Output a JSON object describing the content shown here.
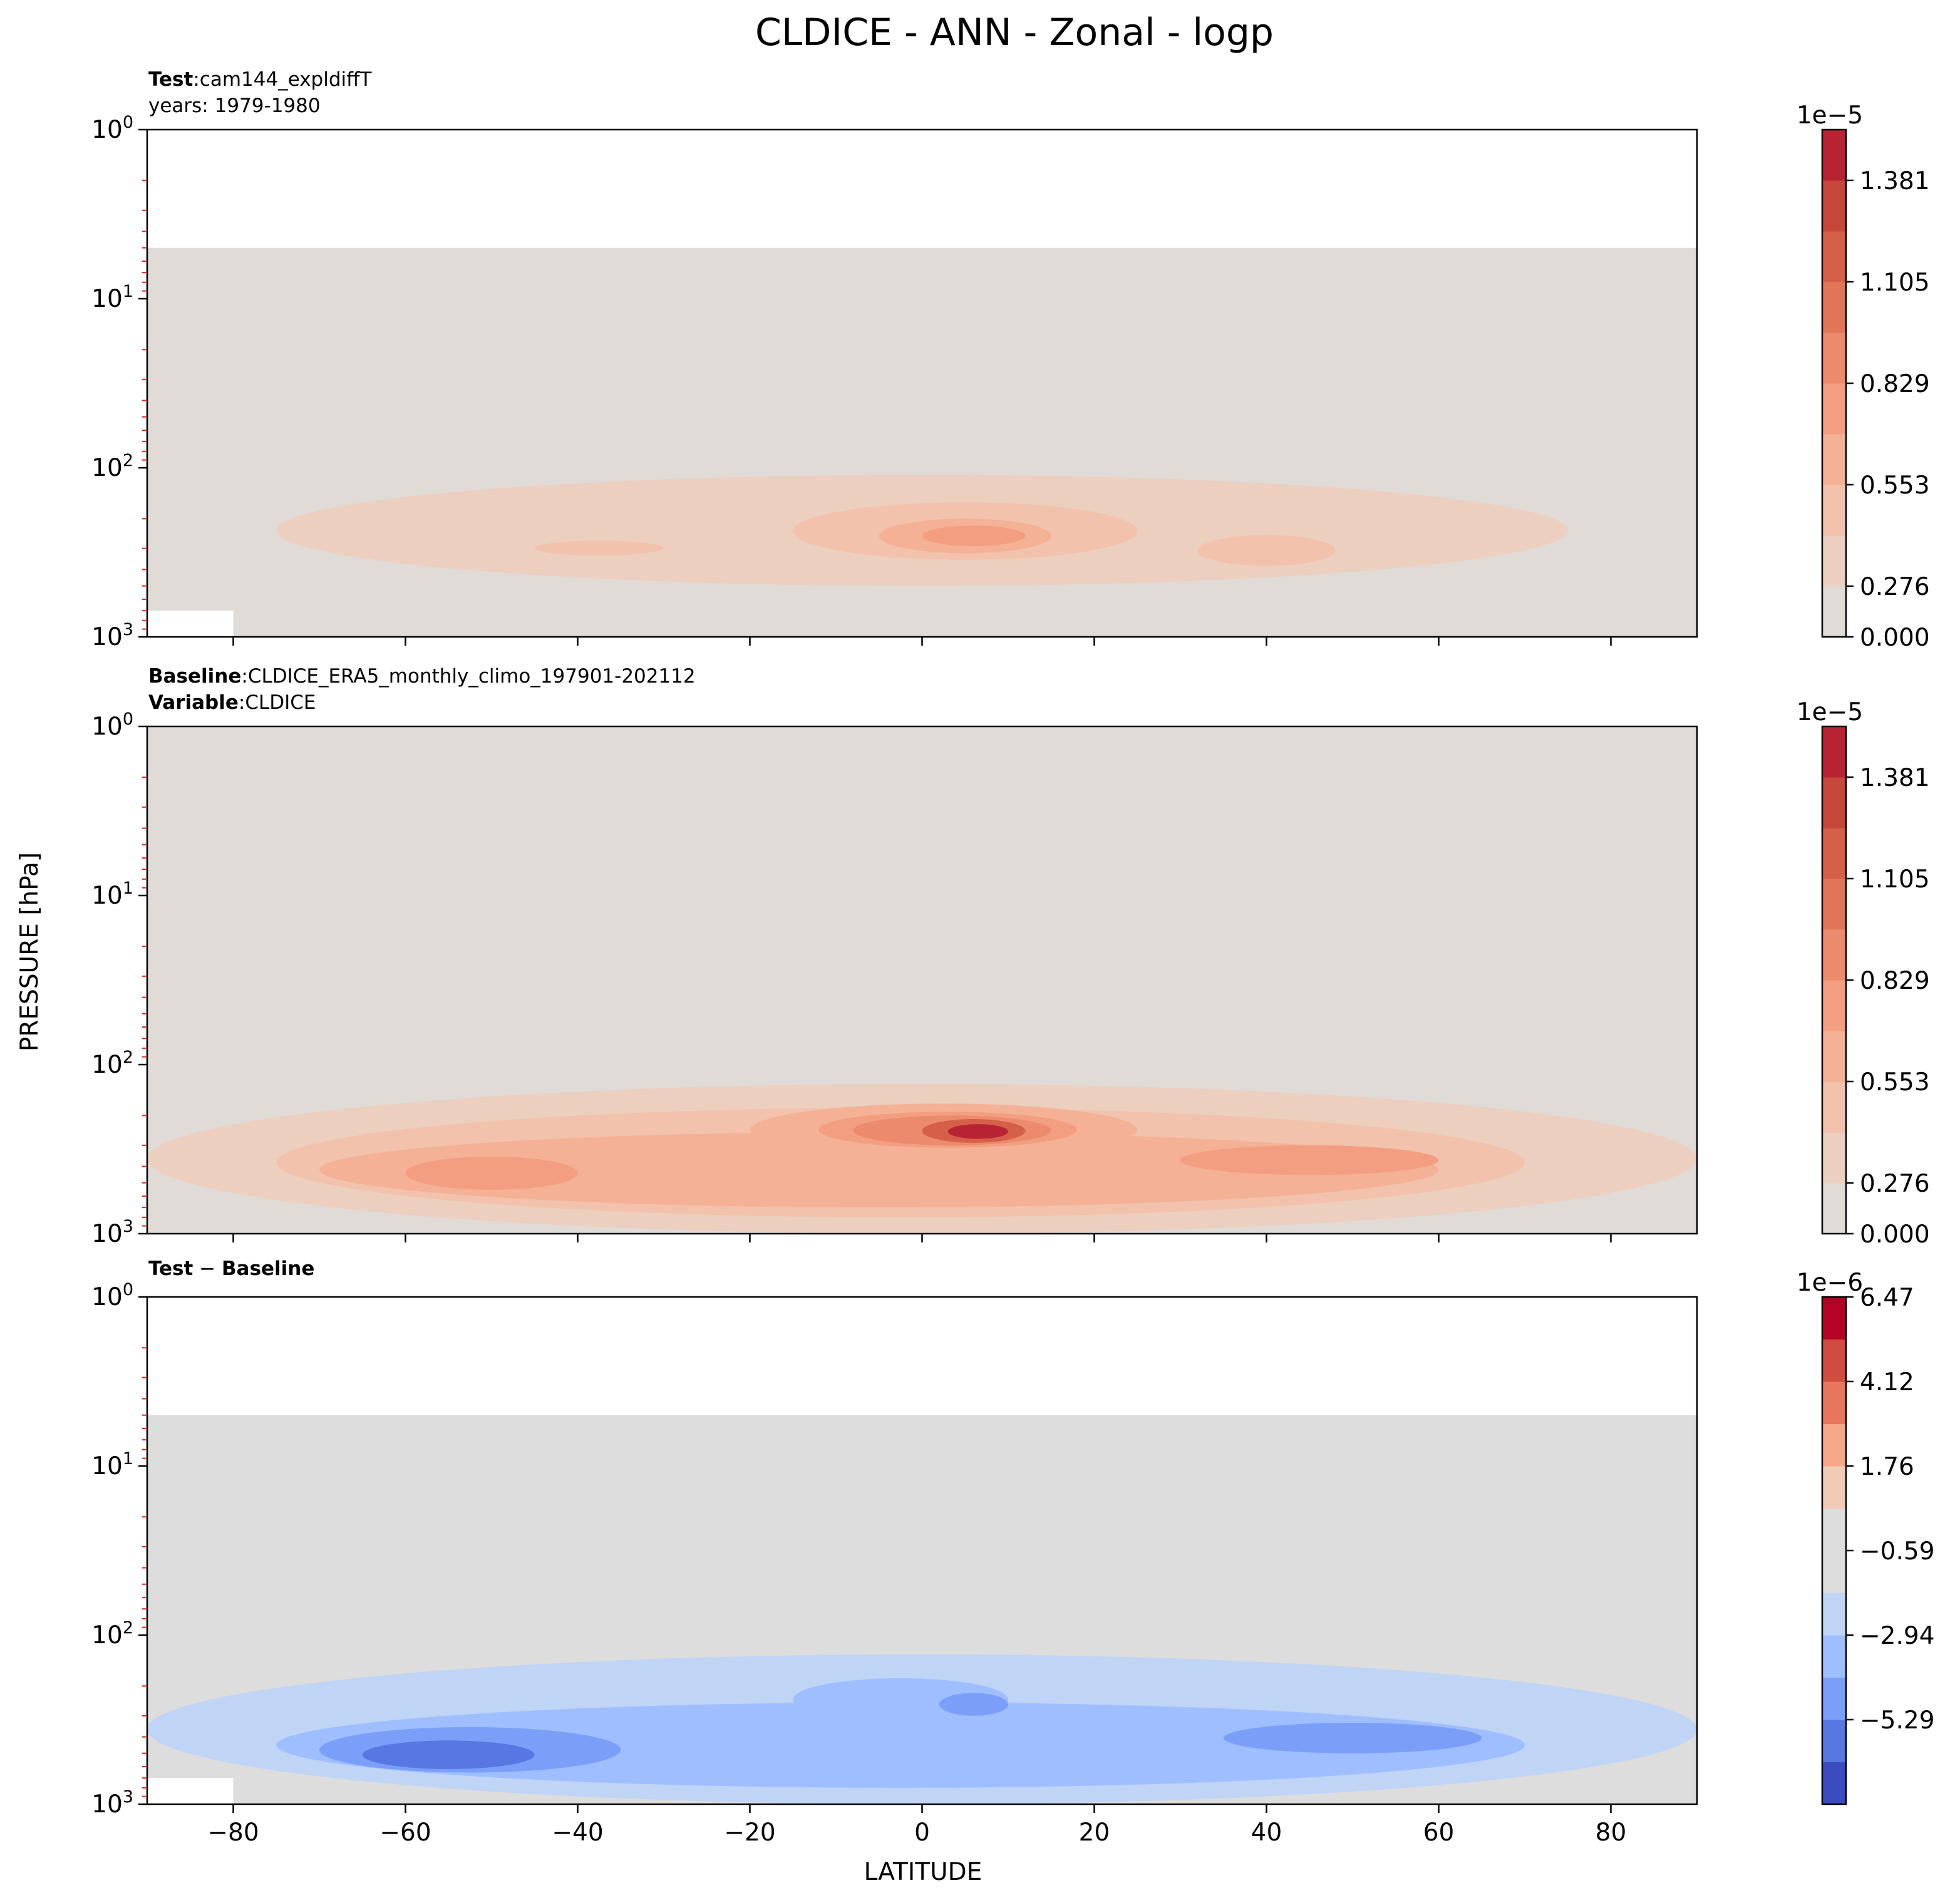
{
  "figure": {
    "title": "CLDICE - ANN - Zonal - logp",
    "xlabel": "LATITUDE",
    "ylabel": "PRESSURE [hPa]"
  },
  "chart_data": [
    {
      "type": "heatmap",
      "subtype": "filled-contour",
      "panel": "test",
      "title_lines": [
        {
          "bold": "Test",
          "sep": ":",
          "text": "cam144_expldiffT"
        },
        {
          "bold": "",
          "sep": "",
          "text": "years: 1979-1980"
        }
      ],
      "xlim": [
        -90,
        90
      ],
      "ylim": [
        1000,
        1
      ],
      "yscale": "log",
      "y_ticks": [
        "10",
        "10",
        "10",
        "10"
      ],
      "y_tick_exponents": [
        "0",
        "1",
        "2",
        "3"
      ],
      "x_ticks": [
        "−80",
        "−60",
        "−40",
        "−20",
        "0",
        "20",
        "40",
        "60",
        "80"
      ],
      "show_x_ticklabels": false,
      "data_top_hPa": 5,
      "colorbar": {
        "multiplier": "1e−5",
        "ticks": [
          "1.381",
          "1.105",
          "0.829",
          "0.553",
          "0.276",
          "0.000"
        ],
        "colors": [
          "#e0dbd6",
          "#edcfc0",
          "#f2c2ad",
          "#f4b196",
          "#f39e80",
          "#ec8a6d",
          "#e17558",
          "#d55f48",
          "#c8473b",
          "#b82334"
        ]
      },
      "fields": [
        {
          "lat": [
            -75,
            75
          ],
          "p_hPa": [
            110,
            500
          ],
          "level": 1
        },
        {
          "lat": [
            -30,
            50
          ],
          "p_hPa": [
            150,
            320
          ],
          "level": 1
        },
        {
          "lat": [
            -15,
            25
          ],
          "p_hPa": [
            160,
            350
          ],
          "level": 2
        },
        {
          "lat": [
            -5,
            15
          ],
          "p_hPa": [
            200,
            320
          ],
          "level": 3
        },
        {
          "lat": [
            0,
            12
          ],
          "p_hPa": [
            220,
            290
          ],
          "level": 4
        },
        {
          "lat": [
            32,
            48
          ],
          "p_hPa": [
            250,
            380
          ],
          "level": 2
        },
        {
          "lat": [
            -45,
            -30
          ],
          "p_hPa": [
            270,
            330
          ],
          "level": 2
        }
      ]
    },
    {
      "type": "heatmap",
      "subtype": "filled-contour",
      "panel": "baseline",
      "title_lines": [
        {
          "bold": "Baseline",
          "sep": ":",
          "text": "CLDICE_ERA5_monthly_climo_197901-202112"
        },
        {
          "bold": "Variable",
          "sep": ":",
          "text": "CLDICE"
        }
      ],
      "xlim": [
        -90,
        90
      ],
      "ylim": [
        1000,
        1
      ],
      "yscale": "log",
      "y_ticks": [
        "10",
        "10",
        "10",
        "10"
      ],
      "y_tick_exponents": [
        "0",
        "1",
        "2",
        "3"
      ],
      "x_ticks": [
        "−80",
        "−60",
        "−40",
        "−20",
        "0",
        "20",
        "40",
        "60",
        "80"
      ],
      "show_x_ticklabels": false,
      "data_top_hPa": 1,
      "colorbar": {
        "multiplier": "1e−5",
        "ticks": [
          "1.381",
          "1.105",
          "0.829",
          "0.553",
          "0.276",
          "0.000"
        ],
        "colors": [
          "#e0dbd6",
          "#edcfc0",
          "#f2c2ad",
          "#f4b196",
          "#f39e80",
          "#ec8a6d",
          "#e17558",
          "#d55f48",
          "#c8473b",
          "#b82334"
        ]
      },
      "fields": [
        {
          "lat": [
            -90,
            90
          ],
          "p_hPa": [
            130,
            1000
          ],
          "level": 1
        },
        {
          "lat": [
            -75,
            70
          ],
          "p_hPa": [
            180,
            800
          ],
          "level": 2
        },
        {
          "lat": [
            -70,
            60
          ],
          "p_hPa": [
            250,
            700
          ],
          "level": 3
        },
        {
          "lat": [
            -20,
            25
          ],
          "p_hPa": [
            170,
            350
          ],
          "level": 3
        },
        {
          "lat": [
            -12,
            18
          ],
          "p_hPa": [
            190,
            310
          ],
          "level": 4
        },
        {
          "lat": [
            -8,
            15
          ],
          "p_hPa": [
            200,
            300
          ],
          "level": 5
        },
        {
          "lat": [
            0,
            12
          ],
          "p_hPa": [
            210,
            290
          ],
          "level": 7
        },
        {
          "lat": [
            3,
            10
          ],
          "p_hPa": [
            225,
            275
          ],
          "level": 9
        },
        {
          "lat": [
            30,
            60
          ],
          "p_hPa": [
            300,
            450
          ],
          "level": 4
        },
        {
          "lat": [
            -60,
            -40
          ],
          "p_hPa": [
            350,
            550
          ],
          "level": 4
        }
      ]
    },
    {
      "type": "heatmap",
      "subtype": "filled-contour",
      "panel": "difference",
      "title_lines": [
        {
          "bold": "Test",
          "sep": " − ",
          "text": "",
          "bold2": "Baseline"
        }
      ],
      "xlim": [
        -90,
        90
      ],
      "ylim": [
        1000,
        1
      ],
      "yscale": "log",
      "y_ticks": [
        "10",
        "10",
        "10",
        "10"
      ],
      "y_tick_exponents": [
        "0",
        "1",
        "2",
        "3"
      ],
      "x_ticks": [
        "−80",
        "−60",
        "−40",
        "−20",
        "0",
        "20",
        "40",
        "60",
        "80"
      ],
      "show_x_ticklabels": true,
      "data_top_hPa": 5,
      "colorbar": {
        "multiplier": "1e−6",
        "ticks": [
          "6.47",
          "4.12",
          "1.76",
          "−0.59",
          "−2.94",
          "−5.29"
        ],
        "colors": [
          "#3b4cc0",
          "#5977e3",
          "#7b9ff9",
          "#9ebeff",
          "#c0d4f5",
          "#dddddd",
          "#dddddd",
          "#f2cbb7",
          "#f7a889",
          "#e8765c",
          "#d24b40",
          "#b40426"
        ]
      },
      "fields": [
        {
          "lat": [
            -90,
            90
          ],
          "p_hPa": [
            130,
            1000
          ],
          "level": -1
        },
        {
          "lat": [
            -75,
            70
          ],
          "p_hPa": [
            250,
            800
          ],
          "level": -2
        },
        {
          "lat": [
            -70,
            -35
          ],
          "p_hPa": [
            350,
            650
          ],
          "level": -3
        },
        {
          "lat": [
            -65,
            -45
          ],
          "p_hPa": [
            420,
            620
          ],
          "level": -4
        },
        {
          "lat": [
            -15,
            10
          ],
          "p_hPa": [
            180,
            320
          ],
          "level": -2
        },
        {
          "lat": [
            2,
            10
          ],
          "p_hPa": [
            220,
            300
          ],
          "level": -3
        },
        {
          "lat": [
            35,
            65
          ],
          "p_hPa": [
            330,
            500
          ],
          "level": -3
        }
      ]
    }
  ]
}
